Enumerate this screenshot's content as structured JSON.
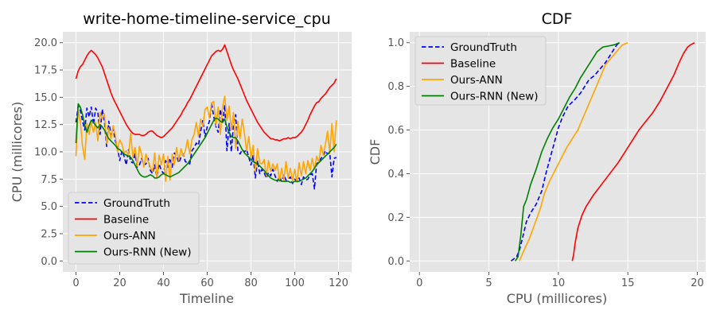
{
  "colors": {
    "GroundTruth": "#0000ff",
    "Baseline": "#ff0000",
    "Ours-ANN": "#ffa500",
    "Ours-RNN (New)": "#008000"
  },
  "chart_data": [
    {
      "type": "line",
      "title": "write-home-timeline-service_cpu",
      "xlabel": "Timeline",
      "ylabel": "CPU (millicores)",
      "xlim": [
        -6,
        126
      ],
      "ylim": [
        -1,
        21
      ],
      "xticks": [
        0,
        20,
        40,
        60,
        80,
        100,
        120
      ],
      "yticks": [
        0.0,
        2.5,
        5.0,
        7.5,
        10.0,
        12.5,
        15.0,
        17.5,
        20.0
      ],
      "ytick_labels": [
        "0.0",
        "2.5",
        "5.0",
        "7.5",
        "10.0",
        "12.5",
        "15.0",
        "17.5",
        "20.0"
      ],
      "grid": true,
      "legend": "lower-left",
      "x": [
        0,
        1,
        2,
        3,
        4,
        5,
        6,
        7,
        8,
        9,
        10,
        11,
        12,
        13,
        14,
        15,
        16,
        17,
        18,
        19,
        20,
        21,
        22,
        23,
        24,
        25,
        26,
        27,
        28,
        29,
        30,
        31,
        32,
        33,
        34,
        35,
        36,
        37,
        38,
        39,
        40,
        41,
        42,
        43,
        44,
        45,
        46,
        47,
        48,
        49,
        50,
        51,
        52,
        53,
        54,
        55,
        56,
        57,
        58,
        59,
        60,
        61,
        62,
        63,
        64,
        65,
        66,
        67,
        68,
        69,
        70,
        71,
        72,
        73,
        74,
        75,
        76,
        77,
        78,
        79,
        80,
        81,
        82,
        83,
        84,
        85,
        86,
        87,
        88,
        89,
        90,
        91,
        92,
        93,
        94,
        95,
        96,
        97,
        98,
        99,
        100,
        101,
        102,
        103,
        104,
        105,
        106,
        107,
        108,
        109,
        110,
        111,
        112,
        113,
        114,
        115,
        116,
        117,
        118,
        119
      ],
      "series": [
        {
          "name": "GroundTruth",
          "style": "dashed",
          "values": [
            12.7,
            14.2,
            13.8,
            12.8,
            12.0,
            14.0,
            13.2,
            14.1,
            12.5,
            14.0,
            13.6,
            11.6,
            13.9,
            12.8,
            10.5,
            12.8,
            11.5,
            12.1,
            11.0,
            10.4,
            9.2,
            10.1,
            9.6,
            8.8,
            10.2,
            9.1,
            9.0,
            9.8,
            8.6,
            8.8,
            9.4,
            8.8,
            8.9,
            9.4,
            8.3,
            8.0,
            8.8,
            7.7,
            8.9,
            8.3,
            8.0,
            9.2,
            8.6,
            9.4,
            8.6,
            9.9,
            9.6,
            9.0,
            9.5,
            9.8,
            9.1,
            9.0,
            8.9,
            10.1,
            10.4,
            10.8,
            10.6,
            11.9,
            12.9,
            11.4,
            12.3,
            12.8,
            14.4,
            13.2,
            12.3,
            11.8,
            13.9,
            12.6,
            14.3,
            10.1,
            12.6,
            10.0,
            12.5,
            13.4,
            10.1,
            9.8,
            10.2,
            10.0,
            10.2,
            9.5,
            8.8,
            9.7,
            7.6,
            9.2,
            8.0,
            8.4,
            8.1,
            7.6,
            8.1,
            7.8,
            8.4,
            7.8,
            7.3,
            7.7,
            7.3,
            7.9,
            7.4,
            7.5,
            7.7,
            7.1,
            7.5,
            7.3,
            7.6,
            7.0,
            7.7,
            7.4,
            7.5,
            7.9,
            8.0,
            6.6,
            8.9,
            9.1,
            9.4,
            9.6,
            10.1,
            9.8,
            9.9,
            7.7,
            9.4,
            9.5
          ]
        },
        {
          "name": "Baseline",
          "style": "solid",
          "values": [
            16.7,
            17.4,
            17.8,
            18.0,
            18.4,
            18.8,
            19.1,
            19.3,
            19.1,
            18.9,
            18.6,
            18.2,
            17.8,
            17.2,
            16.6,
            16.0,
            15.4,
            14.9,
            14.5,
            14.1,
            13.7,
            13.3,
            12.9,
            12.5,
            12.2,
            11.9,
            11.7,
            11.6,
            11.6,
            11.6,
            11.5,
            11.5,
            11.6,
            11.8,
            11.9,
            11.9,
            11.7,
            11.5,
            11.4,
            11.3,
            11.4,
            11.6,
            11.8,
            12.0,
            12.2,
            12.5,
            12.8,
            13.1,
            13.4,
            13.8,
            14.1,
            14.5,
            14.8,
            15.2,
            15.6,
            16.0,
            16.4,
            16.8,
            17.2,
            17.6,
            18.0,
            18.4,
            18.8,
            19.0,
            19.2,
            19.3,
            19.2,
            19.4,
            19.8,
            19.2,
            18.6,
            18.0,
            17.5,
            17.1,
            16.7,
            16.2,
            15.7,
            15.2,
            14.7,
            14.3,
            13.9,
            13.5,
            13.1,
            12.7,
            12.4,
            12.1,
            11.8,
            11.6,
            11.4,
            11.2,
            11.2,
            11.1,
            11.1,
            11.0,
            11.1,
            11.2,
            11.2,
            11.3,
            11.2,
            11.3,
            11.3,
            11.4,
            11.6,
            11.8,
            12.1,
            12.5,
            12.9,
            13.4,
            13.8,
            14.2,
            14.5,
            14.6,
            14.9,
            15.1,
            15.3,
            15.6,
            15.9,
            16.1,
            16.3,
            16.7
          ]
        },
        {
          "name": "Ours-ANN",
          "style": "solid",
          "values": [
            9.6,
            13.8,
            12.8,
            10.5,
            9.3,
            12.6,
            11.6,
            12.7,
            11.8,
            12.7,
            11.0,
            13.6,
            13.0,
            13.5,
            10.8,
            12.2,
            11.2,
            12.4,
            11.5,
            10.0,
            11.1,
            10.7,
            9.9,
            10.1,
            9.6,
            11.7,
            9.5,
            10.4,
            8.7,
            10.5,
            9.8,
            8.6,
            9.8,
            9.1,
            8.6,
            8.2,
            9.9,
            7.6,
            9.7,
            8.8,
            9.8,
            7.3,
            9.6,
            7.4,
            9.8,
            8.8,
            10.4,
            9.2,
            10.3,
            9.6,
            10.1,
            11.1,
            9.8,
            11.1,
            11.6,
            12.7,
            11.4,
            13.0,
            12.3,
            13.9,
            14.1,
            13.1,
            14.5,
            14.6,
            12.4,
            14.1,
            11.6,
            14.1,
            15.1,
            12.9,
            14.2,
            12.0,
            13.6,
            10.3,
            12.8,
            11.2,
            13.0,
            11.7,
            10.1,
            11.4,
            9.5,
            10.6,
            8.2,
            10.3,
            9.0,
            8.9,
            9.3,
            7.8,
            9.2,
            8.2,
            8.9,
            8.3,
            8.9,
            7.3,
            8.5,
            7.4,
            9.1,
            7.6,
            8.5,
            7.3,
            8.4,
            7.2,
            9.0,
            7.8,
            9.1,
            8.0,
            9.2,
            8.3,
            9.4,
            8.4,
            9.6,
            9.0,
            10.6,
            9.7,
            10.7,
            11.9,
            9.9,
            12.6,
            10.0,
            12.9
          ]
        },
        {
          "name": "Ours-RNN (New)",
          "style": "solid",
          "values": [
            10.8,
            14.4,
            14.1,
            13.4,
            12.5,
            11.8,
            12.4,
            12.9,
            12.7,
            12.4,
            12.2,
            12.5,
            12.3,
            12.0,
            11.6,
            11.2,
            11.0,
            10.8,
            10.6,
            10.3,
            10.2,
            10.0,
            9.8,
            9.7,
            9.6,
            9.5,
            9.2,
            8.8,
            8.4,
            8.0,
            7.8,
            7.7,
            7.7,
            7.8,
            7.9,
            7.8,
            7.6,
            7.6,
            7.7,
            7.9,
            8.0,
            7.9,
            7.8,
            7.7,
            7.8,
            7.9,
            8.0,
            8.1,
            8.3,
            8.5,
            8.7,
            8.9,
            9.2,
            9.5,
            9.8,
            10.1,
            10.4,
            10.7,
            11.0,
            11.3,
            11.7,
            12.1,
            12.5,
            12.9,
            13.1,
            13.0,
            12.8,
            12.7,
            13.0,
            12.3,
            11.8,
            11.4,
            11.3,
            11.3,
            11.0,
            10.6,
            10.2,
            9.9,
            9.7,
            9.5,
            9.3,
            9.1,
            9.0,
            8.9,
            8.7,
            8.5,
            8.3,
            8.0,
            7.8,
            7.6,
            7.5,
            7.4,
            7.4,
            7.4,
            7.3,
            7.3,
            7.3,
            7.3,
            7.2,
            7.2,
            7.3,
            7.3,
            7.3,
            7.4,
            7.5,
            7.6,
            7.8,
            8.0,
            8.2,
            8.5,
            8.8,
            9.0,
            9.2,
            9.4,
            9.6,
            9.8,
            10.0,
            10.2,
            10.4,
            10.7
          ]
        }
      ]
    },
    {
      "type": "line",
      "title": "CDF",
      "xlabel": "CPU (millicores)",
      "ylabel": "CDF",
      "xlim": [
        -0.7,
        20.6
      ],
      "ylim": [
        -0.05,
        1.05
      ],
      "xticks": [
        0,
        5,
        10,
        15,
        20
      ],
      "yticks": [
        0.0,
        0.2,
        0.4,
        0.6,
        0.8,
        1.0
      ],
      "ytick_labels": [
        "0.0",
        "0.2",
        "0.4",
        "0.6",
        "0.8",
        "1.0"
      ],
      "grid": true,
      "legend": "upper-left",
      "series": [
        {
          "name": "GroundTruth",
          "style": "dashed",
          "points": [
            [
              6.6,
              0.0
            ],
            [
              7.0,
              0.02
            ],
            [
              7.2,
              0.05
            ],
            [
              7.4,
              0.1
            ],
            [
              7.7,
              0.18
            ],
            [
              8.0,
              0.22
            ],
            [
              8.4,
              0.26
            ],
            [
              8.8,
              0.32
            ],
            [
              9.1,
              0.4
            ],
            [
              9.4,
              0.47
            ],
            [
              9.7,
              0.54
            ],
            [
              10.0,
              0.61
            ],
            [
              10.3,
              0.66
            ],
            [
              10.7,
              0.71
            ],
            [
              11.2,
              0.74
            ],
            [
              11.6,
              0.77
            ],
            [
              11.9,
              0.8
            ],
            [
              12.2,
              0.83
            ],
            [
              12.6,
              0.85
            ],
            [
              13.0,
              0.88
            ],
            [
              13.4,
              0.91
            ],
            [
              13.8,
              0.95
            ],
            [
              14.2,
              0.99
            ],
            [
              14.4,
              1.0
            ]
          ]
        },
        {
          "name": "Baseline",
          "style": "solid",
          "points": [
            [
              11.0,
              0.0
            ],
            [
              11.1,
              0.03
            ],
            [
              11.2,
              0.08
            ],
            [
              11.4,
              0.15
            ],
            [
              11.7,
              0.21
            ],
            [
              12.0,
              0.25
            ],
            [
              12.5,
              0.3
            ],
            [
              13.1,
              0.35
            ],
            [
              13.7,
              0.4
            ],
            [
              14.3,
              0.45
            ],
            [
              14.8,
              0.5
            ],
            [
              15.3,
              0.55
            ],
            [
              15.8,
              0.6
            ],
            [
              16.3,
              0.64
            ],
            [
              16.8,
              0.68
            ],
            [
              17.3,
              0.73
            ],
            [
              17.8,
              0.79
            ],
            [
              18.3,
              0.85
            ],
            [
              18.7,
              0.91
            ],
            [
              19.0,
              0.95
            ],
            [
              19.3,
              0.98
            ],
            [
              19.5,
              0.99
            ],
            [
              19.8,
              1.0
            ]
          ]
        },
        {
          "name": "Ours-ANN",
          "style": "solid",
          "points": [
            [
              7.2,
              0.0
            ],
            [
              7.4,
              0.03
            ],
            [
              7.6,
              0.06
            ],
            [
              7.9,
              0.1
            ],
            [
              8.3,
              0.17
            ],
            [
              8.7,
              0.24
            ],
            [
              9.0,
              0.31
            ],
            [
              9.4,
              0.37
            ],
            [
              9.8,
              0.42
            ],
            [
              10.2,
              0.47
            ],
            [
              10.6,
              0.52
            ],
            [
              11.0,
              0.56
            ],
            [
              11.4,
              0.6
            ],
            [
              11.8,
              0.66
            ],
            [
              12.2,
              0.72
            ],
            [
              12.6,
              0.78
            ],
            [
              13.0,
              0.84
            ],
            [
              13.4,
              0.9
            ],
            [
              13.8,
              0.93
            ],
            [
              14.2,
              0.96
            ],
            [
              14.6,
              0.99
            ],
            [
              15.0,
              1.0
            ]
          ]
        },
        {
          "name": "Ours-RNN (New)",
          "style": "solid",
          "points": [
            [
              6.9,
              0.0
            ],
            [
              7.1,
              0.02
            ],
            [
              7.3,
              0.12
            ],
            [
              7.5,
              0.25
            ],
            [
              7.7,
              0.28
            ],
            [
              8.0,
              0.35
            ],
            [
              8.4,
              0.42
            ],
            [
              8.8,
              0.5
            ],
            [
              9.2,
              0.56
            ],
            [
              9.6,
              0.61
            ],
            [
              10.0,
              0.65
            ],
            [
              10.4,
              0.7
            ],
            [
              10.8,
              0.75
            ],
            [
              11.2,
              0.79
            ],
            [
              11.6,
              0.84
            ],
            [
              12.0,
              0.88
            ],
            [
              12.4,
              0.92
            ],
            [
              12.8,
              0.96
            ],
            [
              13.2,
              0.98
            ],
            [
              13.6,
              0.985
            ],
            [
              14.0,
              0.99
            ],
            [
              14.4,
              1.0
            ]
          ]
        }
      ]
    }
  ]
}
